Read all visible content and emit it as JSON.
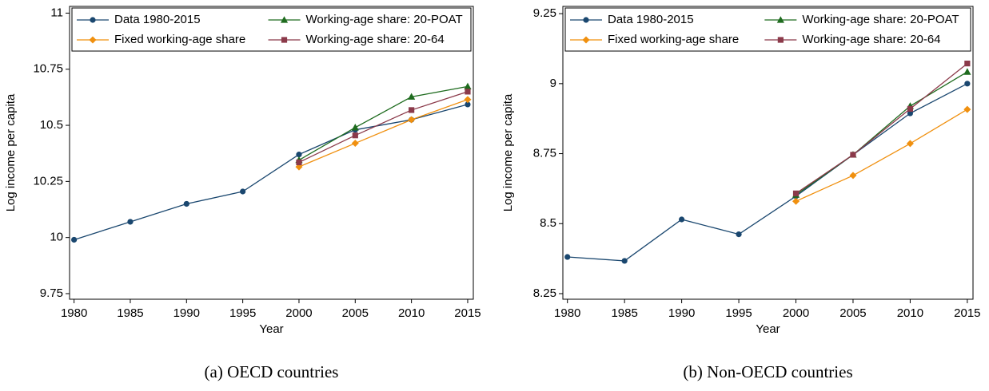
{
  "chart_data": [
    {
      "type": "line",
      "caption": "(a) OECD countries",
      "x_label": "Year",
      "y_label": "Log income per capita",
      "x": [
        1980,
        1985,
        1990,
        1995,
        2000,
        2005,
        2010,
        2015
      ],
      "xlim": [
        1979.6,
        2015.5
      ],
      "xticks": [
        1980,
        1985,
        1990,
        1995,
        2000,
        2005,
        2010,
        2015
      ],
      "ylim": [
        9.725,
        11.03
      ],
      "yticks": [
        9.75,
        10,
        10.25,
        10.5,
        10.75,
        11
      ],
      "legend": "top",
      "legend_columns": 2,
      "series": [
        {
          "name": "Data 1980-2015",
          "color": "#1a476f",
          "marker": "circle",
          "values": [
            9.99,
            10.07,
            10.15,
            10.205,
            10.37,
            10.48,
            10.525,
            10.593
          ]
        },
        {
          "name": "Fixed working-age share",
          "color": "#f0900f",
          "marker": "diamond",
          "values": [
            null,
            null,
            null,
            null,
            10.315,
            10.42,
            10.525,
            10.615
          ]
        },
        {
          "name": "Working-age share: 20-POAT",
          "color": "#1e6b1e",
          "marker": "triangle",
          "values": [
            null,
            null,
            null,
            null,
            10.345,
            10.49,
            10.627,
            10.673
          ]
        },
        {
          "name": "Working-age share: 20-64",
          "color": "#8b3a4a",
          "marker": "square",
          "values": [
            null,
            null,
            null,
            null,
            10.335,
            10.455,
            10.568,
            10.65
          ]
        }
      ]
    },
    {
      "type": "line",
      "caption": "(b) Non-OECD countries",
      "x_label": "Year",
      "y_label": "Log income per capita",
      "x": [
        1980,
        1985,
        1990,
        1995,
        2000,
        2005,
        2010,
        2015
      ],
      "xlim": [
        1979.6,
        2015.5
      ],
      "xticks": [
        1980,
        1985,
        1990,
        1995,
        2000,
        2005,
        2010,
        2015
      ],
      "ylim": [
        8.23,
        9.276
      ],
      "yticks": [
        8.25,
        8.5,
        8.75,
        9,
        9.25
      ],
      "legend": "top",
      "legend_columns": 2,
      "series": [
        {
          "name": "Data 1980-2015",
          "color": "#1a476f",
          "marker": "circle",
          "values": [
            8.381,
            8.367,
            8.515,
            8.462,
            8.598,
            8.746,
            8.894,
            9.0
          ]
        },
        {
          "name": "Fixed working-age share",
          "color": "#f0900f",
          "marker": "diamond",
          "values": [
            null,
            null,
            null,
            null,
            8.58,
            8.672,
            8.786,
            8.908
          ]
        },
        {
          "name": "Working-age share: 20-POAT",
          "color": "#1e6b1e",
          "marker": "triangle",
          "values": [
            null,
            null,
            null,
            null,
            8.603,
            8.746,
            8.92,
            9.042
          ]
        },
        {
          "name": "Working-age share: 20-64",
          "color": "#8b3a4a",
          "marker": "square",
          "values": [
            null,
            null,
            null,
            null,
            8.608,
            8.746,
            8.91,
            9.072
          ]
        }
      ]
    }
  ]
}
